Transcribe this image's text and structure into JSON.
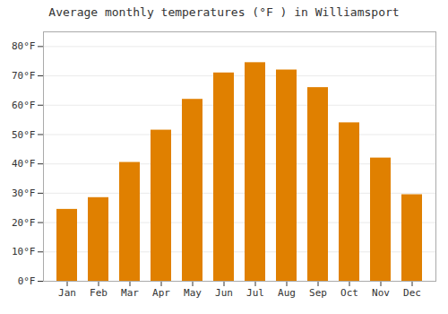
{
  "chart_data": {
    "type": "bar",
    "title": "Average monthly temperatures (°F ) in Williamsport",
    "categories": [
      "Jan",
      "Feb",
      "Mar",
      "Apr",
      "May",
      "Jun",
      "Jul",
      "Aug",
      "Sep",
      "Oct",
      "Nov",
      "Dec"
    ],
    "values": [
      24.5,
      28.5,
      40.5,
      51.5,
      62.0,
      71.0,
      74.5,
      72.0,
      66.0,
      54.0,
      42.0,
      29.5
    ],
    "color": "#E08000",
    "ylim": [
      0,
      85
    ],
    "yticks": [
      {
        "value": 0,
        "label": "0°F"
      },
      {
        "value": 10,
        "label": "10°F"
      },
      {
        "value": 20,
        "label": "20°F"
      },
      {
        "value": 30,
        "label": "30°F"
      },
      {
        "value": 40,
        "label": "40°F"
      },
      {
        "value": 50,
        "label": "50°F"
      },
      {
        "value": 60,
        "label": "60°F"
      },
      {
        "value": 70,
        "label": "70°F"
      },
      {
        "value": 80,
        "label": "80°F"
      }
    ],
    "grid": true
  }
}
